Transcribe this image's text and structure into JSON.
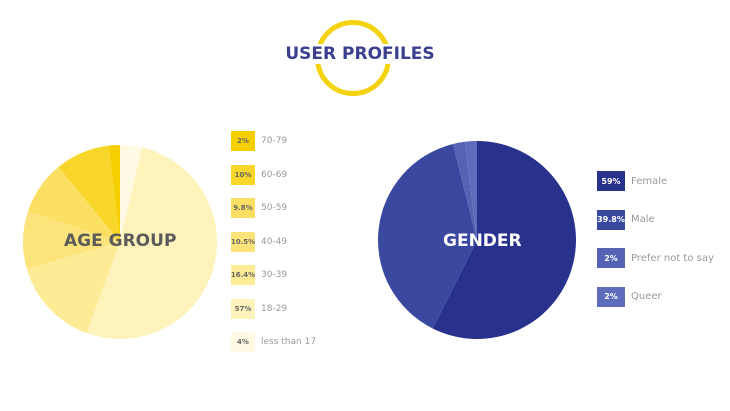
{
  "header": {
    "title": "USER PROFILES"
  },
  "chart_data": [
    {
      "type": "pie",
      "title": "AGE GROUP",
      "categories": [
        "less than 17",
        "18-29",
        "30-39",
        "40-49",
        "50-59",
        "60-69",
        "70-79"
      ],
      "values": [
        4,
        57,
        16.4,
        10.5,
        9.8,
        10,
        2
      ],
      "labels": [
        "4%",
        "57%",
        "16.4%",
        "10.5%",
        "9.8%",
        "10%",
        "2%"
      ],
      "colors": [
        "#fffae3",
        "#fef3bb",
        "#fdeb96",
        "#fce47a",
        "#fbdf62",
        "#f9d62a",
        "#f6cf00"
      ]
    },
    {
      "type": "pie",
      "title": "GENDER",
      "categories": [
        "Female",
        "Male",
        "Prefer not to say",
        "Queer"
      ],
      "values": [
        59,
        39.8,
        2,
        2
      ],
      "labels": [
        "59%",
        "39.8%",
        "2%",
        "2%"
      ],
      "colors": [
        "#28318c",
        "#3a48a0",
        "#5563b4",
        "#5d6cbb"
      ]
    }
  ]
}
